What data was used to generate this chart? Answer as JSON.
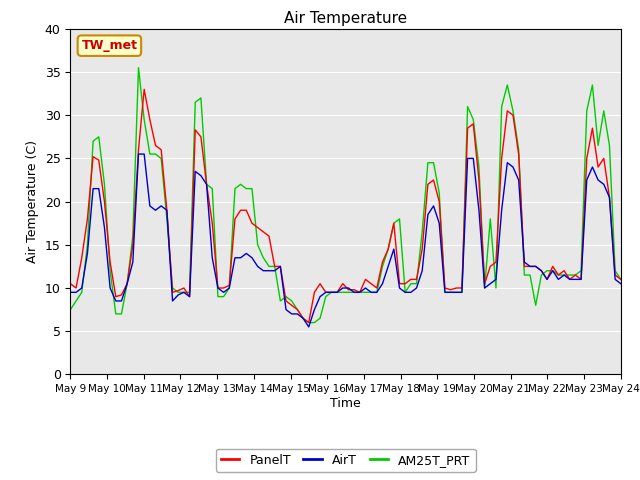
{
  "title": "Air Temperature",
  "ylabel": "Air Temperature (C)",
  "xlabel": "Time",
  "ylim": [
    0,
    40
  ],
  "background_color": "#e8e8e8",
  "legend_label": "TW_met",
  "legend_box_color": "#ffffcc",
  "legend_box_edge": "#cc8800",
  "series_labels": [
    "PanelT",
    "AirT",
    "AM25T_PRT"
  ],
  "series_colors": [
    "#ff0000",
    "#0000cc",
    "#00cc00"
  ],
  "xtick_labels": [
    "May 9",
    "May 10",
    "May 11",
    "May 12",
    "May 13",
    "May 14",
    "May 15",
    "May 16",
    "May 17",
    "May 18",
    "May 19",
    "May 20",
    "May 21",
    "May 22",
    "May 23",
    "May 24"
  ],
  "ytick_values": [
    0,
    5,
    10,
    15,
    20,
    25,
    30,
    35,
    40
  ],
  "panel_t": [
    10.5,
    10.0,
    13.5,
    18.0,
    25.2,
    24.8,
    20.0,
    13.0,
    9.0,
    9.2,
    10.5,
    15.0,
    26.0,
    33.0,
    29.5,
    26.5,
    26.0,
    19.0,
    9.5,
    9.7,
    10.0,
    9.0,
    28.3,
    27.5,
    22.0,
    17.5,
    10.0,
    10.0,
    10.3,
    18.0,
    19.0,
    19.0,
    17.5,
    17.0,
    16.5,
    16.0,
    12.5,
    12.5,
    8.5,
    8.0,
    7.5,
    6.5,
    6.0,
    9.5,
    10.5,
    9.5,
    9.5,
    9.5,
    10.5,
    9.8,
    9.8,
    9.5,
    11.0,
    10.5,
    10.0,
    13.0,
    14.5,
    17.5,
    10.5,
    10.5,
    11.0,
    11.0,
    14.5,
    22.0,
    22.5,
    20.0,
    10.0,
    9.8,
    10.0,
    10.0,
    28.5,
    29.0,
    22.5,
    10.5,
    12.5,
    13.0,
    25.0,
    30.5,
    30.0,
    25.5,
    12.5,
    12.5,
    12.5,
    12.0,
    11.0,
    12.5,
    11.5,
    12.0,
    11.0,
    11.5,
    11.0,
    25.0,
    28.5,
    24.0,
    25.0,
    20.5,
    11.5,
    11.0
  ],
  "air_t": [
    9.5,
    9.5,
    10.0,
    14.0,
    21.5,
    21.5,
    17.0,
    10.0,
    8.5,
    8.5,
    10.5,
    13.0,
    25.5,
    25.5,
    19.5,
    19.0,
    19.5,
    19.0,
    8.5,
    9.2,
    9.5,
    9.0,
    23.5,
    23.0,
    22.0,
    13.5,
    10.0,
    9.5,
    10.0,
    13.5,
    13.5,
    14.0,
    13.5,
    12.5,
    12.0,
    12.0,
    12.0,
    12.5,
    7.5,
    7.0,
    7.0,
    6.5,
    5.5,
    7.5,
    9.0,
    9.5,
    9.5,
    9.5,
    10.0,
    10.0,
    9.5,
    9.5,
    10.0,
    9.5,
    9.5,
    10.5,
    12.5,
    14.5,
    10.0,
    9.5,
    9.5,
    10.0,
    12.0,
    18.5,
    19.5,
    17.5,
    9.5,
    9.5,
    9.5,
    9.5,
    25.0,
    25.0,
    19.0,
    10.0,
    10.5,
    11.0,
    19.0,
    24.5,
    24.0,
    22.5,
    13.0,
    12.5,
    12.5,
    12.0,
    11.0,
    12.0,
    11.0,
    11.5,
    11.0,
    11.0,
    11.0,
    22.5,
    24.0,
    22.5,
    22.0,
    20.5,
    11.0,
    10.5
  ],
  "am25t_prt": [
    7.5,
    8.5,
    9.5,
    15.0,
    27.0,
    27.5,
    22.0,
    12.0,
    7.0,
    7.0,
    10.5,
    16.0,
    35.5,
    29.5,
    25.5,
    25.5,
    25.0,
    18.0,
    10.0,
    9.5,
    9.5,
    9.5,
    31.5,
    32.0,
    22.0,
    21.5,
    9.0,
    9.0,
    10.0,
    21.5,
    22.0,
    21.5,
    21.5,
    15.0,
    13.5,
    12.5,
    12.5,
    8.5,
    9.0,
    8.5,
    7.5,
    6.5,
    6.0,
    6.0,
    6.5,
    9.0,
    9.5,
    9.5,
    9.5,
    9.5,
    9.5,
    9.5,
    9.5,
    9.5,
    9.5,
    12.5,
    14.5,
    17.5,
    18.0,
    9.5,
    10.5,
    10.5,
    16.5,
    24.5,
    24.5,
    21.0,
    9.5,
    9.5,
    9.5,
    9.5,
    31.0,
    29.5,
    24.0,
    10.0,
    18.0,
    10.0,
    31.0,
    33.5,
    30.5,
    26.0,
    11.5,
    11.5,
    8.0,
    11.5,
    12.0,
    12.0,
    11.5,
    11.5,
    11.5,
    11.5,
    12.0,
    30.5,
    33.5,
    26.5,
    30.5,
    26.5,
    12.0,
    11.0
  ]
}
